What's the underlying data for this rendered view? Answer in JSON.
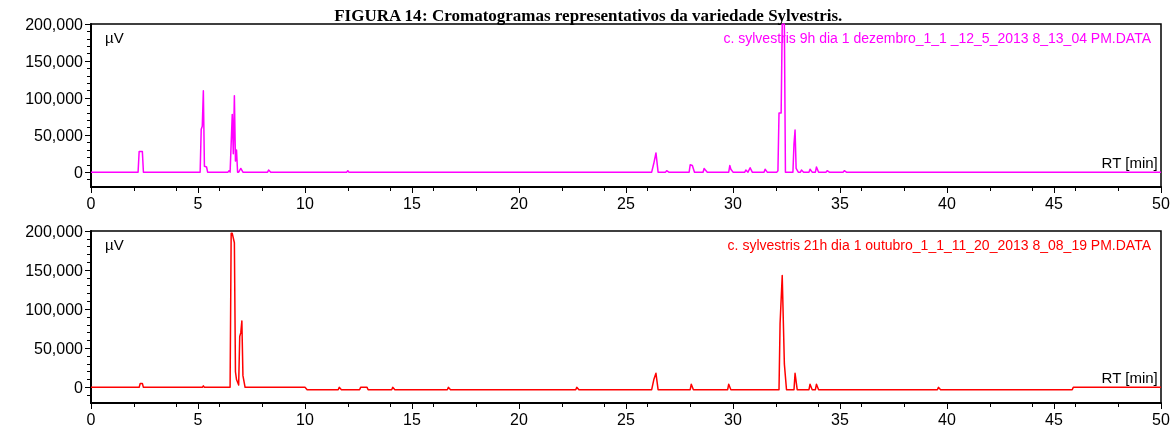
{
  "chart_data": [
    {
      "type": "line",
      "title": "FIGURA 14: Cromatogramas representativos da variedade Sylvestris.",
      "xlabel": "RT [min]",
      "ylabel": "µV",
      "marker": "none",
      "grid": false,
      "legend": "top right",
      "xlim": [
        0,
        50
      ],
      "xticks": [
        0,
        5,
        10,
        15,
        20,
        25,
        30,
        35,
        40,
        45,
        50
      ],
      "ylim": [
        -20000,
        200000
      ],
      "yticks": [
        {
          "value": 0,
          "label": "0"
        },
        {
          "value": 50000,
          "label": "50,000"
        },
        {
          "value": 100000,
          "label": "100,000"
        },
        {
          "value": 150000,
          "label": "150,000"
        },
        {
          "value": 200000,
          "label": "200,000"
        }
      ],
      "series": [
        {
          "name": "c. sylvestris 9h dia 1 dezembro_1_1 _12_5_2013 8_13_04 PM.DATA",
          "color": "#ff00ff",
          "x": [
            0,
            2.2,
            2.25,
            2.4,
            2.45,
            5.1,
            5.15,
            5.2,
            5.25,
            5.3,
            5.4,
            5.45,
            6.4,
            6.45,
            6.5,
            6.6,
            6.65,
            6.7,
            6.75,
            6.8,
            6.85,
            6.9,
            7.0,
            7.1,
            8.25,
            8.3,
            8.4,
            11.95,
            12,
            12.05,
            26.2,
            26.3,
            26.4,
            26.5,
            26.85,
            26.9,
            27.0,
            27.95,
            28.0,
            28.1,
            28.2,
            28.6,
            28.65,
            28.8,
            29.8,
            29.85,
            29.9,
            30.0,
            30.55,
            30.6,
            30.7,
            30.8,
            30.9,
            31.45,
            31.5,
            31.6,
            32.05,
            32.1,
            32.15,
            32.25,
            32.3,
            32.4,
            32.45,
            32.8,
            32.85,
            32.9,
            32.95,
            33.05,
            33.15,
            33.2,
            33.3,
            33.55,
            33.6,
            33.7,
            33.85,
            33.9,
            34.0,
            34.35,
            34.4,
            34.5,
            35.15,
            35.2,
            35.3,
            50
          ],
          "values": [
            0,
            0,
            28000,
            28000,
            0,
            0,
            58000,
            62000,
            110000,
            8000,
            7000,
            0,
            0,
            2000,
            0,
            78000,
            25000,
            103000,
            15000,
            30000,
            0,
            0,
            5000,
            0,
            0,
            3000,
            0,
            0,
            2000,
            0,
            0,
            12000,
            26000,
            0,
            0,
            2000,
            0,
            0,
            10000,
            9000,
            0,
            0,
            5000,
            0,
            0,
            9000,
            4000,
            0,
            0,
            3000,
            0,
            6000,
            0,
            0,
            4000,
            0,
            0,
            2000,
            80000,
            80000,
            200000,
            200000,
            0,
            0,
            38000,
            57000,
            5000,
            0,
            0,
            3000,
            0,
            0,
            4000,
            0,
            0,
            7000,
            0,
            0,
            2000,
            0,
            0,
            2000,
            0,
            0
          ]
        }
      ]
    },
    {
      "type": "line",
      "xlabel": "RT [min]",
      "ylabel": "µV",
      "marker": "none",
      "grid": false,
      "legend": "top right",
      "xlim": [
        0,
        50
      ],
      "xticks": [
        0,
        5,
        10,
        15,
        20,
        25,
        30,
        35,
        40,
        45,
        50
      ],
      "ylim": [
        -20000,
        200000
      ],
      "yticks": [
        {
          "value": 0,
          "label": "0"
        },
        {
          "value": 50000,
          "label": "50,000"
        },
        {
          "value": 100000,
          "label": "100,000"
        },
        {
          "value": 150000,
          "label": "150,000"
        },
        {
          "value": 200000,
          "label": "200,000"
        }
      ],
      "series": [
        {
          "name": "c. sylvestris 21h dia 1 outubro_1_1_11_20_2013 8_08_19 PM.DATA",
          "color": "#ff0000",
          "x": [
            0,
            2.25,
            2.3,
            2.4,
            2.45,
            5.2,
            5.25,
            5.3,
            6.5,
            6.55,
            6.6,
            6.7,
            6.75,
            6.8,
            6.9,
            6.95,
            7.0,
            7.05,
            7.1,
            7.2,
            10.0,
            10.1,
            11.55,
            11.6,
            11.7,
            12.55,
            12.6,
            12.9,
            12.95,
            14.05,
            14.1,
            14.2,
            16.65,
            16.7,
            16.8,
            22.65,
            22.7,
            22.8,
            26.2,
            26.3,
            26.4,
            26.5,
            28.0,
            28.05,
            28.15,
            29.75,
            29.8,
            29.9,
            32.15,
            32.2,
            32.3,
            32.4,
            32.5,
            32.85,
            32.9,
            33.0,
            33.55,
            33.6,
            33.7,
            33.85,
            33.9,
            34.0,
            39.55,
            39.6,
            39.7,
            45.85,
            45.9,
            50
          ],
          "values": [
            0,
            0,
            5000,
            5000,
            0,
            0,
            2000,
            0,
            0,
            197000,
            197000,
            185000,
            20000,
            10000,
            3000,
            65000,
            70000,
            85000,
            15000,
            0,
            0,
            -3000,
            -3000,
            0,
            -3000,
            -3000,
            0,
            0,
            -3000,
            -3000,
            0,
            -3000,
            -3000,
            0,
            -3000,
            -3000,
            0,
            -3000,
            -3000,
            10000,
            18000,
            -3000,
            -3000,
            4000,
            -3000,
            -3000,
            4000,
            -3000,
            -3000,
            82000,
            143000,
            30000,
            -3000,
            -3000,
            18000,
            -3000,
            -3000,
            4000,
            -3000,
            -3000,
            4000,
            -3000,
            -3000,
            0,
            -3000,
            -3000,
            0,
            0
          ]
        }
      ]
    }
  ]
}
